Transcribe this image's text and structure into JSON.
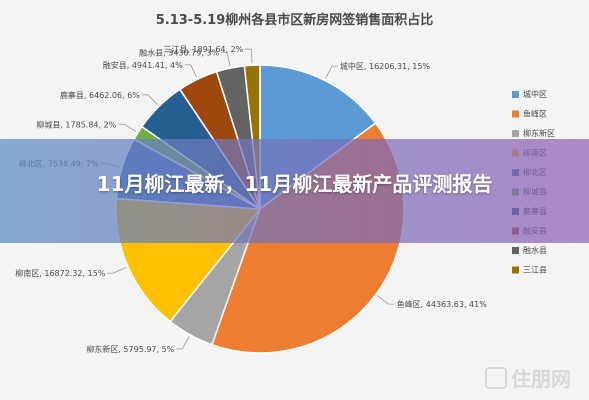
{
  "headline": "11月柳江最新，11月柳江最新产品评测报告",
  "watermark": "住朋网",
  "chart_data": {
    "type": "pie",
    "title": "5.13-5.19柳州各县市区新房网签销售面积占比",
    "legend_position": "right",
    "slices": [
      {
        "name": "城中区",
        "value": 16206.31,
        "percent": "15%",
        "color": "#5b9bd5"
      },
      {
        "name": "鱼峰区",
        "value": 44363.63,
        "percent": "41%",
        "color": "#ed7d31"
      },
      {
        "name": "柳东新区",
        "value": 5795.97,
        "percent": "5%",
        "color": "#a5a5a5"
      },
      {
        "name": "柳南区",
        "value": 16872.32,
        "percent": "15%",
        "color": "#ffc000"
      },
      {
        "name": "柳北区",
        "value": 7538.49,
        "percent": "7%",
        "color": "#4472c4"
      },
      {
        "name": "柳城县",
        "value": 1785.84,
        "percent": "2%",
        "color": "#70ad47"
      },
      {
        "name": "鹿寨县",
        "value": 6462.06,
        "percent": "6%",
        "color": "#255e91"
      },
      {
        "name": "融安县",
        "value": 4941.41,
        "percent": "4%",
        "color": "#9e480e"
      },
      {
        "name": "融水县",
        "value": 3430.79,
        "percent": "3%",
        "color": "#636363"
      },
      {
        "name": "三江县",
        "value": 1891.64,
        "percent": "2%",
        "color": "#997300"
      }
    ]
  }
}
